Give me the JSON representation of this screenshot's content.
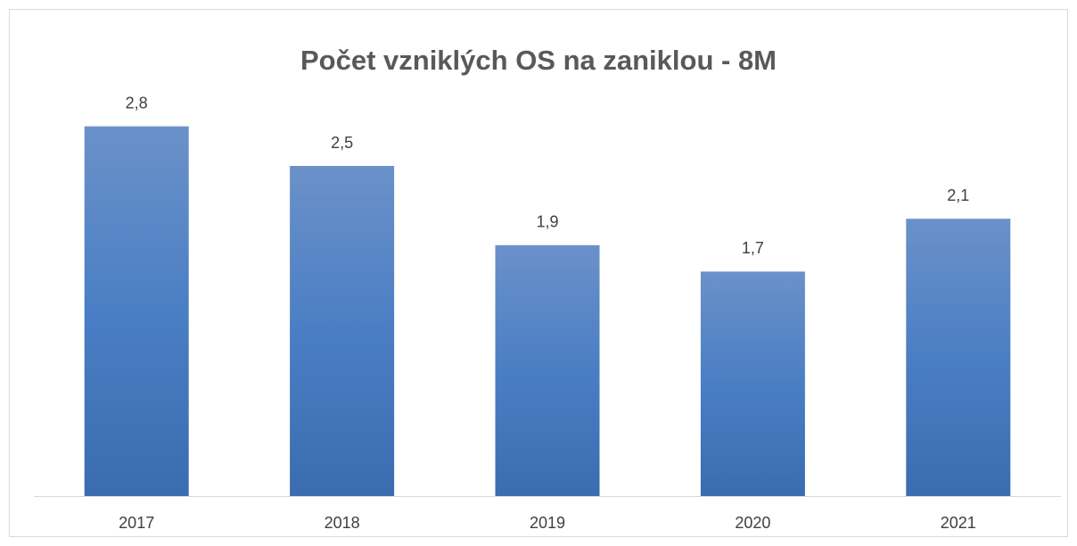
{
  "chart_data": {
    "type": "bar",
    "title": "Počet vzniklých OS na zaniklou - 8M",
    "categories": [
      "2017",
      "2018",
      "2019",
      "2020",
      "2021"
    ],
    "values": [
      2.8,
      2.5,
      1.9,
      1.7,
      2.1
    ],
    "value_labels": [
      "2,8",
      "2,5",
      "1,9",
      "1,7",
      "2,1"
    ],
    "color": "#4a7cc2",
    "ylim": [
      0,
      3
    ]
  }
}
